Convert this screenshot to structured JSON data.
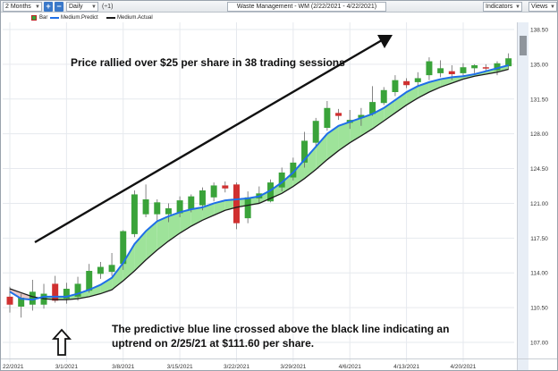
{
  "toolbar": {
    "period": "2 Months",
    "interval": "Daily",
    "multiplier": "(÷1)",
    "title": "Waste Management - WM (2/22/2021 - 4/22/2021)",
    "indicators": "Indicators",
    "views": "Views",
    "plus_icon": "plus-icon",
    "minus_icon": "minus-icon"
  },
  "legend": {
    "bar": "Bar",
    "predict": "Medium.Predict",
    "actual": "Medium.Actual"
  },
  "annotations": {
    "top": "Price rallied over $25 per share in 38 trading sessions",
    "bottom": "The predictive blue line crossed above the black line indicating an uptrend on 2/25/21 at $111.60 per share."
  },
  "colors": {
    "up": "#3aa33a",
    "down": "#d03030",
    "predict": "#1f6fe8",
    "actual": "#1a1a1a",
    "fill_green": "#9ee39a",
    "fill_red": "#e9c9c9",
    "accent": "#3a78c9"
  },
  "chart_data": {
    "type": "bar",
    "title": "Waste Management - WM (2/22/2021 - 4/22/2021)",
    "ylim": [
      107.0,
      138.5
    ],
    "yticks": [
      "138.50",
      "135.00",
      "131.50",
      "128.00",
      "124.50",
      "121.00",
      "117.50",
      "114.00",
      "110.50",
      "107.00"
    ],
    "xticks": [
      {
        "label": "22/2021",
        "i": 0
      },
      {
        "label": "3/1/2021",
        "i": 5
      },
      {
        "label": "3/8/2021",
        "i": 10
      },
      {
        "label": "3/15/2021",
        "i": 15
      },
      {
        "label": "3/22/2021",
        "i": 20
      },
      {
        "label": "3/29/2021",
        "i": 25
      },
      {
        "label": "4/6/2021",
        "i": 30
      },
      {
        "label": "4/13/2021",
        "i": 35
      },
      {
        "label": "4/20/2021",
        "i": 40
      }
    ],
    "bars": [
      {
        "o": 111.6,
        "h": 112.6,
        "l": 110.0,
        "c": 110.8
      },
      {
        "o": 110.6,
        "h": 111.9,
        "l": 109.5,
        "c": 111.5
      },
      {
        "o": 110.8,
        "h": 113.3,
        "l": 110.2,
        "c": 112.1
      },
      {
        "o": 110.8,
        "h": 112.9,
        "l": 110.4,
        "c": 111.9
      },
      {
        "o": 112.9,
        "h": 113.7,
        "l": 111.0,
        "c": 111.2
      },
      {
        "o": 111.4,
        "h": 113.0,
        "l": 110.9,
        "c": 112.4
      },
      {
        "o": 111.6,
        "h": 113.6,
        "l": 111.2,
        "c": 112.9
      },
      {
        "o": 112.2,
        "h": 114.9,
        "l": 112.0,
        "c": 114.2
      },
      {
        "o": 113.9,
        "h": 115.1,
        "l": 113.4,
        "c": 114.6
      },
      {
        "o": 114.1,
        "h": 116.0,
        "l": 113.7,
        "c": 114.8
      },
      {
        "o": 114.9,
        "h": 118.3,
        "l": 114.3,
        "c": 118.2
      },
      {
        "o": 117.9,
        "h": 122.3,
        "l": 117.6,
        "c": 121.9
      },
      {
        "o": 119.9,
        "h": 122.9,
        "l": 119.6,
        "c": 121.4
      },
      {
        "o": 119.9,
        "h": 121.4,
        "l": 119.2,
        "c": 121.1
      },
      {
        "o": 119.9,
        "h": 121.0,
        "l": 119.1,
        "c": 120.5
      },
      {
        "o": 120.0,
        "h": 121.7,
        "l": 119.6,
        "c": 121.3
      },
      {
        "o": 120.4,
        "h": 121.9,
        "l": 120.1,
        "c": 121.7
      },
      {
        "o": 120.8,
        "h": 122.6,
        "l": 120.3,
        "c": 122.3
      },
      {
        "o": 121.6,
        "h": 123.1,
        "l": 121.2,
        "c": 122.8
      },
      {
        "o": 122.8,
        "h": 123.2,
        "l": 122.1,
        "c": 122.5
      },
      {
        "o": 122.9,
        "h": 123.1,
        "l": 118.4,
        "c": 119.0
      },
      {
        "o": 119.5,
        "h": 122.2,
        "l": 119.0,
        "c": 121.6
      },
      {
        "o": 121.5,
        "h": 122.7,
        "l": 121.0,
        "c": 122.0
      },
      {
        "o": 121.2,
        "h": 123.4,
        "l": 121.1,
        "c": 123.1
      },
      {
        "o": 122.6,
        "h": 124.6,
        "l": 122.2,
        "c": 124.1
      },
      {
        "o": 123.6,
        "h": 125.6,
        "l": 123.3,
        "c": 125.1
      },
      {
        "o": 125.1,
        "h": 128.2,
        "l": 124.6,
        "c": 127.3
      },
      {
        "o": 127.1,
        "h": 129.6,
        "l": 126.6,
        "c": 129.3
      },
      {
        "o": 128.6,
        "h": 131.3,
        "l": 128.3,
        "c": 130.6
      },
      {
        "o": 130.1,
        "h": 130.5,
        "l": 129.4,
        "c": 129.8
      },
      {
        "o": 129.1,
        "h": 130.4,
        "l": 128.5,
        "c": 129.4
      },
      {
        "o": 129.6,
        "h": 130.6,
        "l": 128.8,
        "c": 129.9
      },
      {
        "o": 130.0,
        "h": 132.8,
        "l": 129.8,
        "c": 131.2
      },
      {
        "o": 131.1,
        "h": 132.7,
        "l": 130.9,
        "c": 132.4
      },
      {
        "o": 132.2,
        "h": 133.9,
        "l": 131.8,
        "c": 133.4
      },
      {
        "o": 133.3,
        "h": 133.6,
        "l": 132.6,
        "c": 132.9
      },
      {
        "o": 133.2,
        "h": 134.2,
        "l": 132.7,
        "c": 133.6
      },
      {
        "o": 133.9,
        "h": 135.7,
        "l": 133.4,
        "c": 135.3
      },
      {
        "o": 134.1,
        "h": 135.4,
        "l": 133.7,
        "c": 134.6
      },
      {
        "o": 134.3,
        "h": 134.9,
        "l": 133.4,
        "c": 134.0
      },
      {
        "o": 134.1,
        "h": 135.1,
        "l": 133.7,
        "c": 134.7
      },
      {
        "o": 134.6,
        "h": 135.0,
        "l": 134.1,
        "c": 134.9
      },
      {
        "o": 134.7,
        "h": 135.0,
        "l": 134.3,
        "c": 134.6
      },
      {
        "o": 134.4,
        "h": 135.3,
        "l": 133.9,
        "c": 135.1
      },
      {
        "o": 134.8,
        "h": 136.1,
        "l": 134.5,
        "c": 135.6
      }
    ],
    "predict": [
      112.1,
      111.4,
      111.3,
      111.6,
      111.6,
      111.6,
      111.9,
      112.3,
      112.8,
      113.5,
      115.0,
      116.9,
      118.2,
      119.2,
      119.7,
      120.1,
      120.4,
      120.6,
      121.0,
      121.3,
      121.4,
      121.5,
      121.7,
      122.3,
      123.1,
      124.1,
      125.4,
      126.7,
      128.0,
      128.8,
      129.2,
      129.6,
      130.0,
      130.6,
      131.4,
      132.2,
      132.8,
      133.2,
      133.5,
      133.7,
      133.8,
      134.0,
      134.3,
      134.6,
      134.9
    ],
    "actual": [
      112.4,
      112.0,
      111.6,
      111.4,
      111.3,
      111.3,
      111.4,
      111.6,
      111.9,
      112.3,
      113.2,
      114.2,
      115.3,
      116.3,
      117.2,
      118.0,
      118.7,
      119.3,
      119.8,
      120.3,
      120.6,
      120.8,
      121.0,
      121.5,
      122.0,
      122.7,
      123.5,
      124.4,
      125.4,
      126.3,
      127.1,
      127.8,
      128.5,
      129.3,
      130.1,
      130.9,
      131.6,
      132.2,
      132.7,
      133.1,
      133.5,
      133.8,
      134.0,
      134.2,
      134.5
    ]
  }
}
